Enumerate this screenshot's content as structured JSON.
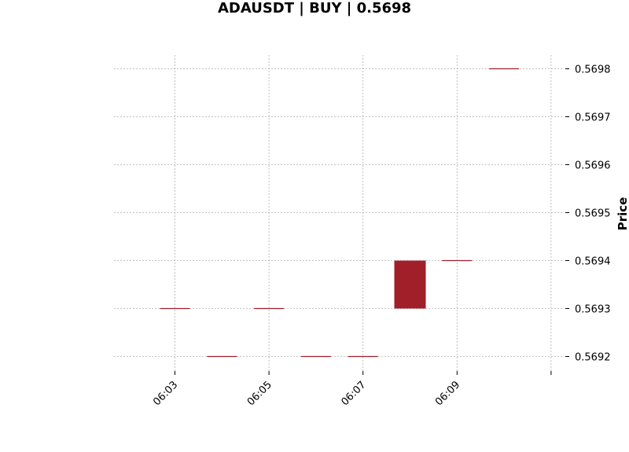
{
  "chart_data": {
    "type": "candlestick",
    "title": "ADAUSDT | BUY | 0.5698",
    "xlabel": "",
    "ylabel": "Price",
    "x_tick_labels": [
      "06:03",
      "06:05",
      "06:07",
      "06:09"
    ],
    "y_tick_labels": [
      "0.5692",
      "0.5693",
      "0.5694",
      "0.5695",
      "0.5696",
      "0.5697",
      "0.5698"
    ],
    "ylim": [
      0.56917,
      0.56983
    ],
    "grid": true,
    "candle_color": "#a01f28",
    "grid_color": "#b0b0b0",
    "candles": [
      {
        "time": "06:03",
        "open": 0.5693,
        "high": 0.5693,
        "low": 0.5693,
        "close": 0.5693
      },
      {
        "time": "06:04",
        "open": 0.5692,
        "high": 0.5692,
        "low": 0.5692,
        "close": 0.5692
      },
      {
        "time": "06:05",
        "open": 0.5693,
        "high": 0.5693,
        "low": 0.5693,
        "close": 0.5693
      },
      {
        "time": "06:06",
        "open": 0.5692,
        "high": 0.5692,
        "low": 0.5692,
        "close": 0.5692
      },
      {
        "time": "06:07",
        "open": 0.5692,
        "high": 0.5692,
        "low": 0.5692,
        "close": 0.5692
      },
      {
        "time": "06:08",
        "open": 0.5694,
        "high": 0.5694,
        "low": 0.5693,
        "close": 0.5693
      },
      {
        "time": "06:09",
        "open": 0.5694,
        "high": 0.5694,
        "low": 0.5694,
        "close": 0.5694
      },
      {
        "time": "06:10",
        "open": 0.5698,
        "high": 0.5698,
        "low": 0.5698,
        "close": 0.5698
      }
    ]
  }
}
